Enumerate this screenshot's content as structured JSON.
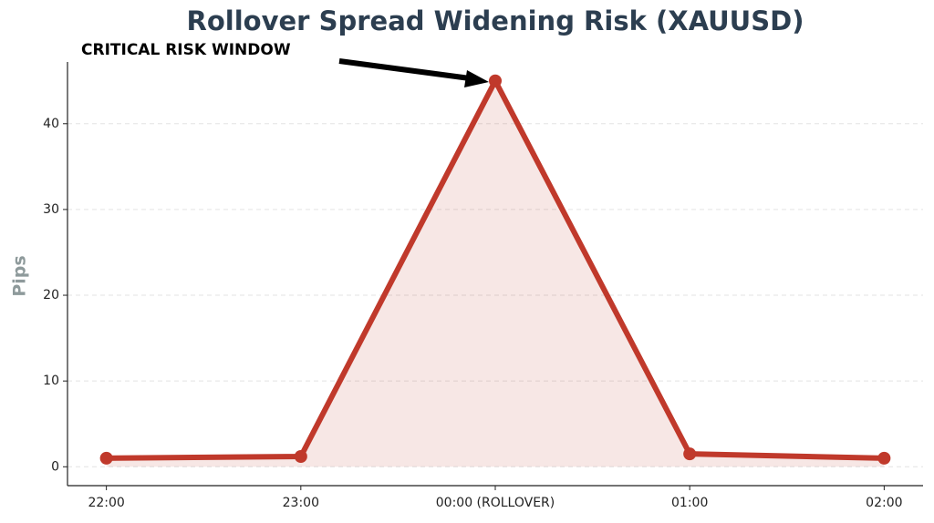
{
  "chart_data": {
    "type": "line",
    "title": "Rollover Spread Widening Risk (XAUUSD)",
    "ylabel": "Pips",
    "annotation": "CRITICAL RISK WINDOW",
    "categories": [
      "22:00",
      "23:00",
      "00:00 (ROLLOVER)",
      "01:00",
      "02:00"
    ],
    "values": [
      1.0,
      1.2,
      45,
      1.5,
      1.0
    ],
    "color": "#c0392b",
    "area_fill": true,
    "ylim": [
      -2.2,
      47.2
    ],
    "yticks": [
      0,
      10,
      20,
      30,
      40
    ],
    "grid": true
  }
}
